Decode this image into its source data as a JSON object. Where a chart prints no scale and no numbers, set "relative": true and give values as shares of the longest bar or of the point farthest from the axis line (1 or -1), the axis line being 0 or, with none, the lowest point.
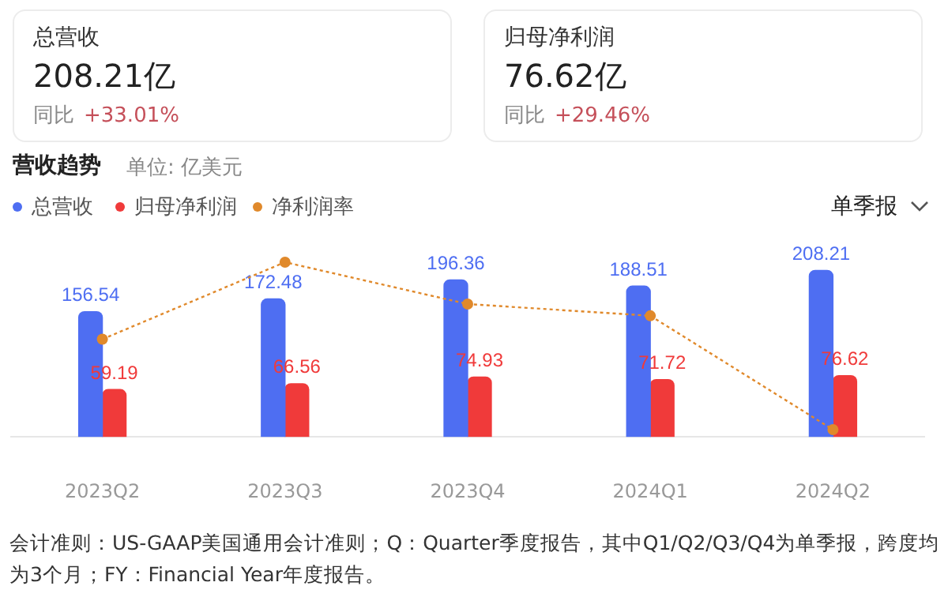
{
  "chart_data": [
    {
      "type": "other",
      "annotations": [
        "总营收",
        "208.21亿",
        "同比",
        "+33.01%",
        "归母净利润",
        "76.62亿",
        "同比",
        "+29.46%"
      ]
    },
    {
      "type": "bar",
      "title": "营收趋势",
      "subtitle": "单位: 亿美元",
      "categories": [
        "2023Q2",
        "2023Q3",
        "2023Q4",
        "2024Q1",
        "2024Q2"
      ],
      "series": [
        {
          "name": "总营收",
          "color": "#4e6ef2",
          "values": [
            156.54,
            172.48,
            196.36,
            188.51,
            208.21
          ]
        },
        {
          "name": "归母净利润",
          "color": "#f03a3a",
          "values": [
            59.19,
            66.56,
            74.93,
            71.72,
            76.62
          ]
        }
      ],
      "data_labels": true,
      "legend": "top left",
      "grid": false,
      "tick_labels": "x",
      "annotations": [
        "单季报",
        "会计准则：US-GAAP美国通用会计准则；Q：Quarter季度报告，其中Q1/Q2/Q3/Q4为单季报，跨度均为3个月；FY：Financial Year年度报告。"
      ]
    },
    {
      "type": "line",
      "relative": true,
      "categories": [
        "2023Q2",
        "2023Q3",
        "2023Q4",
        "2024Q1",
        "2024Q2"
      ],
      "series": [
        {
          "name": "净利润率",
          "color": "#e0892b",
          "values": [
            0.54,
            1,
            0.75,
            0.68,
            0
          ]
        }
      ],
      "marker": "circle",
      "line_style": "dotted",
      "legend": "top left",
      "grid": false,
      "tick_labels": false
    }
  ]
}
